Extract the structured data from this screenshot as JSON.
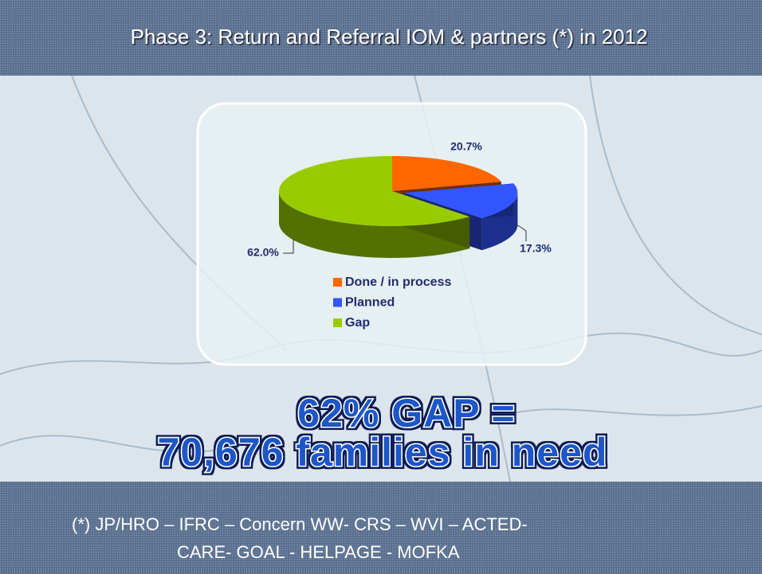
{
  "slide": {
    "title": "Phase 3: Return and Referral IOM & partners (*) in 2012",
    "headline": [
      "62% GAP =",
      "70,676 families in need"
    ],
    "footnote": [
      "(*) JP/HRO – IFRC – Concern WW- CRS – WVI – ACTED-",
      "CARE- GOAL - HELPAGE - MOFKA"
    ]
  },
  "chart_data": {
    "type": "pie",
    "categories": [
      "Done / in process",
      "Planned",
      "Gap"
    ],
    "values": [
      20.7,
      17.3,
      62.0
    ],
    "value_labels": [
      "20.7%",
      "17.3%",
      "62.0%"
    ],
    "colors": [
      "#ff6600",
      "#3355ff",
      "#99cc00"
    ],
    "legend": "bottom"
  }
}
